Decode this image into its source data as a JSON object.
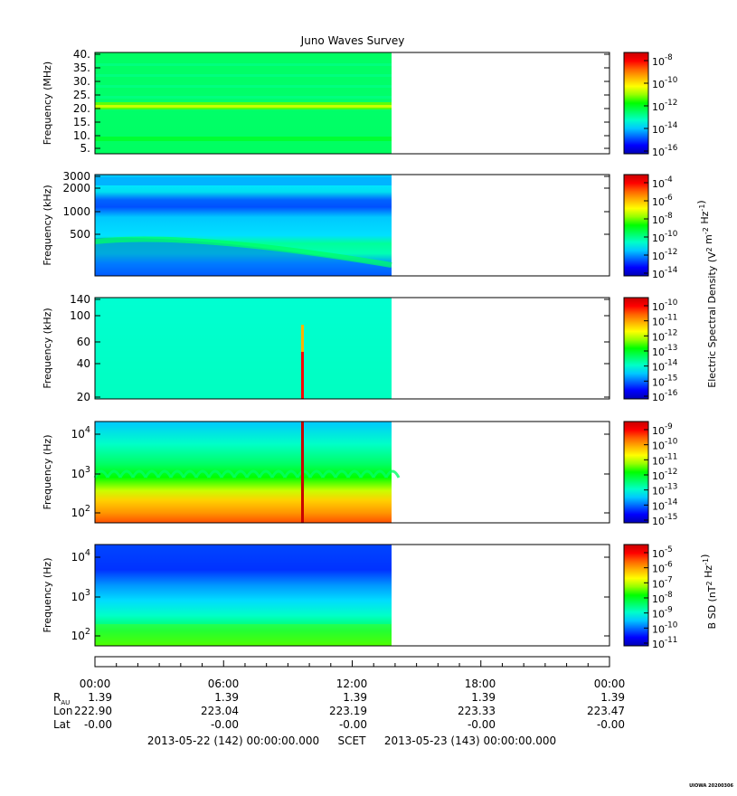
{
  "title": "Juno Waves Survey",
  "panels": [
    {
      "ylabel": "Frequency (MHz)",
      "yticks": [
        "40.",
        "35.",
        "30.",
        "25.",
        "20.",
        "15.",
        "10.",
        "5."
      ],
      "cbar_ticks": [
        {
          "base": "10",
          "exp": "-8"
        },
        {
          "base": "10",
          "exp": "-10"
        },
        {
          "base": "10",
          "exp": "-12"
        },
        {
          "base": "10",
          "exp": "-14"
        },
        {
          "base": "10",
          "exp": "-16"
        }
      ]
    },
    {
      "ylabel": "Frequency (kHz)",
      "yticks": [
        "3000",
        "2000",
        "1000",
        "500"
      ],
      "cbar_ticks": [
        {
          "base": "10",
          "exp": "-4"
        },
        {
          "base": "10",
          "exp": "-6"
        },
        {
          "base": "10",
          "exp": "-8"
        },
        {
          "base": "10",
          "exp": "-10"
        },
        {
          "base": "10",
          "exp": "-12"
        },
        {
          "base": "10",
          "exp": "-14"
        }
      ]
    },
    {
      "ylabel": "Frequency (kHz)",
      "yticks": [
        "140",
        "100",
        "60",
        "40",
        "20"
      ],
      "cbar_ticks": [
        {
          "base": "10",
          "exp": "-10"
        },
        {
          "base": "10",
          "exp": "-11"
        },
        {
          "base": "10",
          "exp": "-12"
        },
        {
          "base": "10",
          "exp": "-13"
        },
        {
          "base": "10",
          "exp": "-14"
        },
        {
          "base": "10",
          "exp": "-15"
        },
        {
          "base": "10",
          "exp": "-16"
        }
      ]
    },
    {
      "ylabel": "Frequency (Hz)",
      "yticks": [
        {
          "base": "10",
          "exp": "4"
        },
        {
          "base": "10",
          "exp": "3"
        },
        {
          "base": "10",
          "exp": "2"
        }
      ],
      "cbar_ticks": [
        {
          "base": "10",
          "exp": "-9"
        },
        {
          "base": "10",
          "exp": "-10"
        },
        {
          "base": "10",
          "exp": "-11"
        },
        {
          "base": "10",
          "exp": "-12"
        },
        {
          "base": "10",
          "exp": "-13"
        },
        {
          "base": "10",
          "exp": "-14"
        },
        {
          "base": "10",
          "exp": "-15"
        }
      ]
    },
    {
      "ylabel": "Frequency (Hz)",
      "yticks": [
        {
          "base": "10",
          "exp": "4"
        },
        {
          "base": "10",
          "exp": "3"
        },
        {
          "base": "10",
          "exp": "2"
        }
      ],
      "cbar_ticks": [
        {
          "base": "10",
          "exp": "-5"
        },
        {
          "base": "10",
          "exp": "-6"
        },
        {
          "base": "10",
          "exp": "-7"
        },
        {
          "base": "10",
          "exp": "-8"
        },
        {
          "base": "10",
          "exp": "-9"
        },
        {
          "base": "10",
          "exp": "-10"
        },
        {
          "base": "10",
          "exp": "-11"
        }
      ]
    }
  ],
  "colorbar_labels": {
    "electric": {
      "pre": "Electric Spectral Density (V",
      "sup1": "2",
      "mid": " m",
      "sup2": "-2",
      "mid2": " Hz",
      "sup3": "-1",
      "post": ")"
    },
    "magnetic": {
      "pre": "B SD (nT",
      "sup1": "2",
      "mid": " Hz",
      "sup2": "-1",
      "post": ")"
    }
  },
  "ephemeris": {
    "times": [
      "00:00",
      "06:00",
      "12:00",
      "18:00",
      "00:00"
    ],
    "rows": [
      {
        "label": "R",
        "sub": "AU",
        "values": [
          "1.39",
          "1.39",
          "1.39",
          "1.39",
          "1.39"
        ]
      },
      {
        "label": "Lon",
        "sub": "",
        "values": [
          "222.90",
          "223.04",
          "223.19",
          "223.33",
          "223.47"
        ]
      },
      {
        "label": "Lat",
        "sub": "",
        "values": [
          "-0.00",
          "-0.00",
          "-0.00",
          "-0.00",
          "-0.00"
        ]
      }
    ],
    "start": "2013-05-22 (142) 00:00:00.000",
    "frame": "SCET",
    "end": "2013-05-23 (143) 00:00:00.000"
  },
  "footer": "UIOWA 20200306",
  "colors": {
    "colormap": [
      "#0000b4",
      "#0000ff",
      "#0064ff",
      "#00c8ff",
      "#00ffc8",
      "#00ff64",
      "#00ff00",
      "#96ff00",
      "#ffff00",
      "#ffb400",
      "#ff6400",
      "#ff0000",
      "#c80000"
    ]
  },
  "chart_data": {
    "type": "heatmap",
    "title": "Juno Waves Survey",
    "x_axis": {
      "start": "2013-05-22 00:00",
      "end": "2013-05-23 00:00",
      "ticks": [
        "00:00",
        "06:00",
        "12:00",
        "18:00",
        "00:00"
      ]
    },
    "data_coverage": {
      "from": "00:00",
      "to": "13:55"
    },
    "panels": [
      {
        "ylabel": "Frequency (MHz)",
        "ylim": [
          3,
          41
        ],
        "scale": "linear",
        "colorbar_range": [
          "1e-17",
          "1e-7"
        ],
        "description_features": {
          "background_level": "1e-13",
          "band_MHz": [
            21,
            22
          ],
          "band_level": "1e-12"
        }
      },
      {
        "ylabel": "Frequency (kHz)",
        "ylim": [
          100,
          3000
        ],
        "scale": "log",
        "colorbar_range": [
          "1e-14",
          "1e-3"
        ],
        "description_features": {
          "background_level": "1e-11",
          "low_band_level": "1e-13",
          "band_near_1000_kHz": "1e-12",
          "emission_500_kHz": "1e-9"
        }
      },
      {
        "ylabel": "Frequency (kHz)",
        "ylim": [
          20,
          140
        ],
        "scale": "log",
        "colorbar_range": [
          "1e-16",
          "1e-10"
        ],
        "description_features": {
          "background_level": "1e-14",
          "spike_time": "09:45",
          "spike_level": "1e-10"
        }
      },
      {
        "ylabel": "Frequency (Hz)",
        "ylim": [
          50,
          20000
        ],
        "scale": "log",
        "colorbar_range": [
          "1e-15",
          "1e-9"
        ],
        "description_features": {
          "high_freq_level": "1e-13",
          "low_freq_level": "1e-10",
          "spike_time": "09:45",
          "spike_level": "1e-9"
        }
      },
      {
        "ylabel": "Frequency (Hz)",
        "ylim": [
          50,
          20000
        ],
        "scale": "log",
        "colorbar_range": [
          "1e-11",
          "1e-4"
        ],
        "description_features": {
          "high_freq_level": "1e-10",
          "low_freq_level": "1e-8"
        }
      }
    ]
  }
}
